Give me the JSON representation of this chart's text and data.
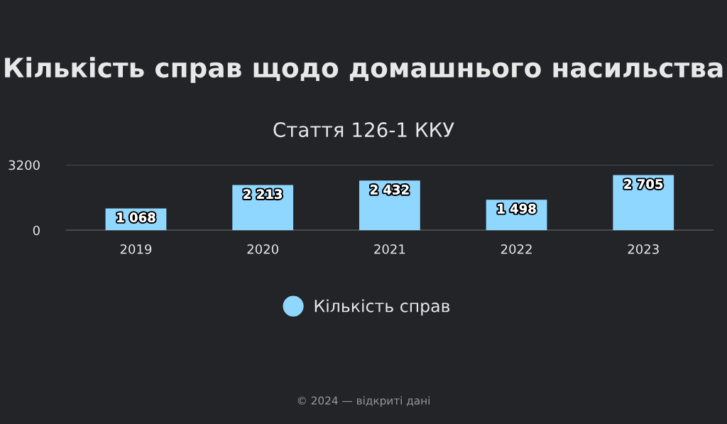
{
  "chart_data": {
    "type": "bar",
    "title": "Кількість справ щодо домашнього насильства",
    "subtitle": "Стаття 126-1 ККУ",
    "categories": [
      "2019",
      "2020",
      "2021",
      "2022",
      "2023"
    ],
    "series": [
      {
        "name": "Кількість справ",
        "color": "#8fd7ff",
        "values": [
          1068,
          2213,
          2432,
          1498,
          2705
        ],
        "value_labels": [
          "1 068",
          "2 213",
          "2 432",
          "1 498",
          "2 705"
        ]
      }
    ],
    "ylim": [
      0,
      3200
    ],
    "yticks": [
      0,
      3200
    ],
    "grid": "y",
    "legend": "bottom",
    "annotations": [
      "© 2024 — відкриті дані"
    ]
  }
}
